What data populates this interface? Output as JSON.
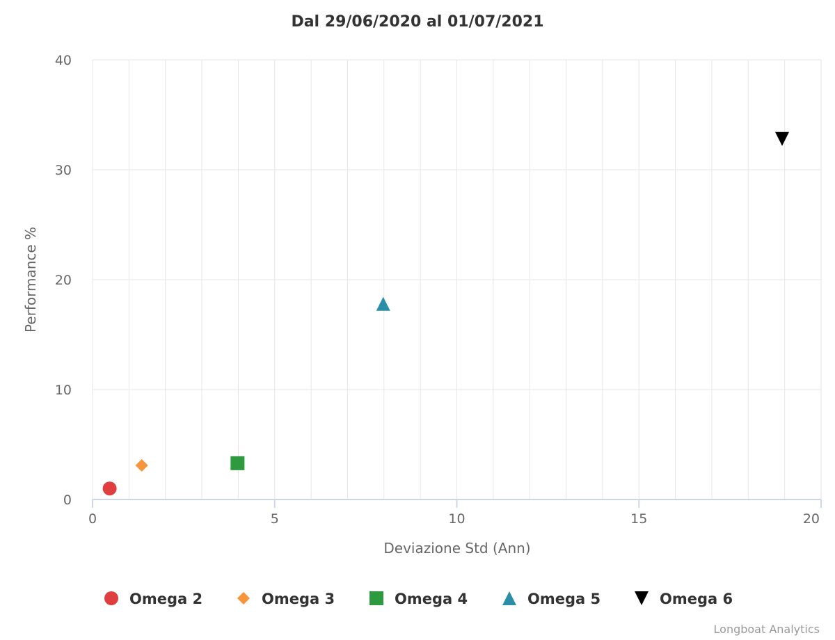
{
  "chart_data": {
    "type": "scatter",
    "title": "Dal 29/06/2020 al 01/07/2021",
    "xlabel": "Deviazione Std (Ann)",
    "ylabel": "Performance %",
    "xlim": [
      0,
      20
    ],
    "ylim": [
      0,
      40
    ],
    "x_ticks": [
      0,
      5,
      10,
      15,
      20
    ],
    "y_ticks": [
      0,
      10,
      20,
      30,
      40
    ],
    "x_minor_step": 1,
    "grid": true,
    "legend_position": "bottom",
    "series": [
      {
        "name": "Omega 2",
        "marker": "circle",
        "color": "#e03e3e",
        "x": 0.47,
        "y": 1.0
      },
      {
        "name": "Omega 3",
        "marker": "diamond",
        "color": "#f7953a",
        "x": 1.35,
        "y": 3.1
      },
      {
        "name": "Omega 4",
        "marker": "square",
        "color": "#2e9a3f",
        "x": 3.98,
        "y": 3.3
      },
      {
        "name": "Omega 5",
        "marker": "triangle",
        "color": "#2a8ea8",
        "x": 7.98,
        "y": 17.8
      },
      {
        "name": "Omega 6",
        "marker": "triangle-down",
        "color": "#000000",
        "x": 18.93,
        "y": 32.8
      }
    ]
  },
  "credits": "Longboat Analytics"
}
